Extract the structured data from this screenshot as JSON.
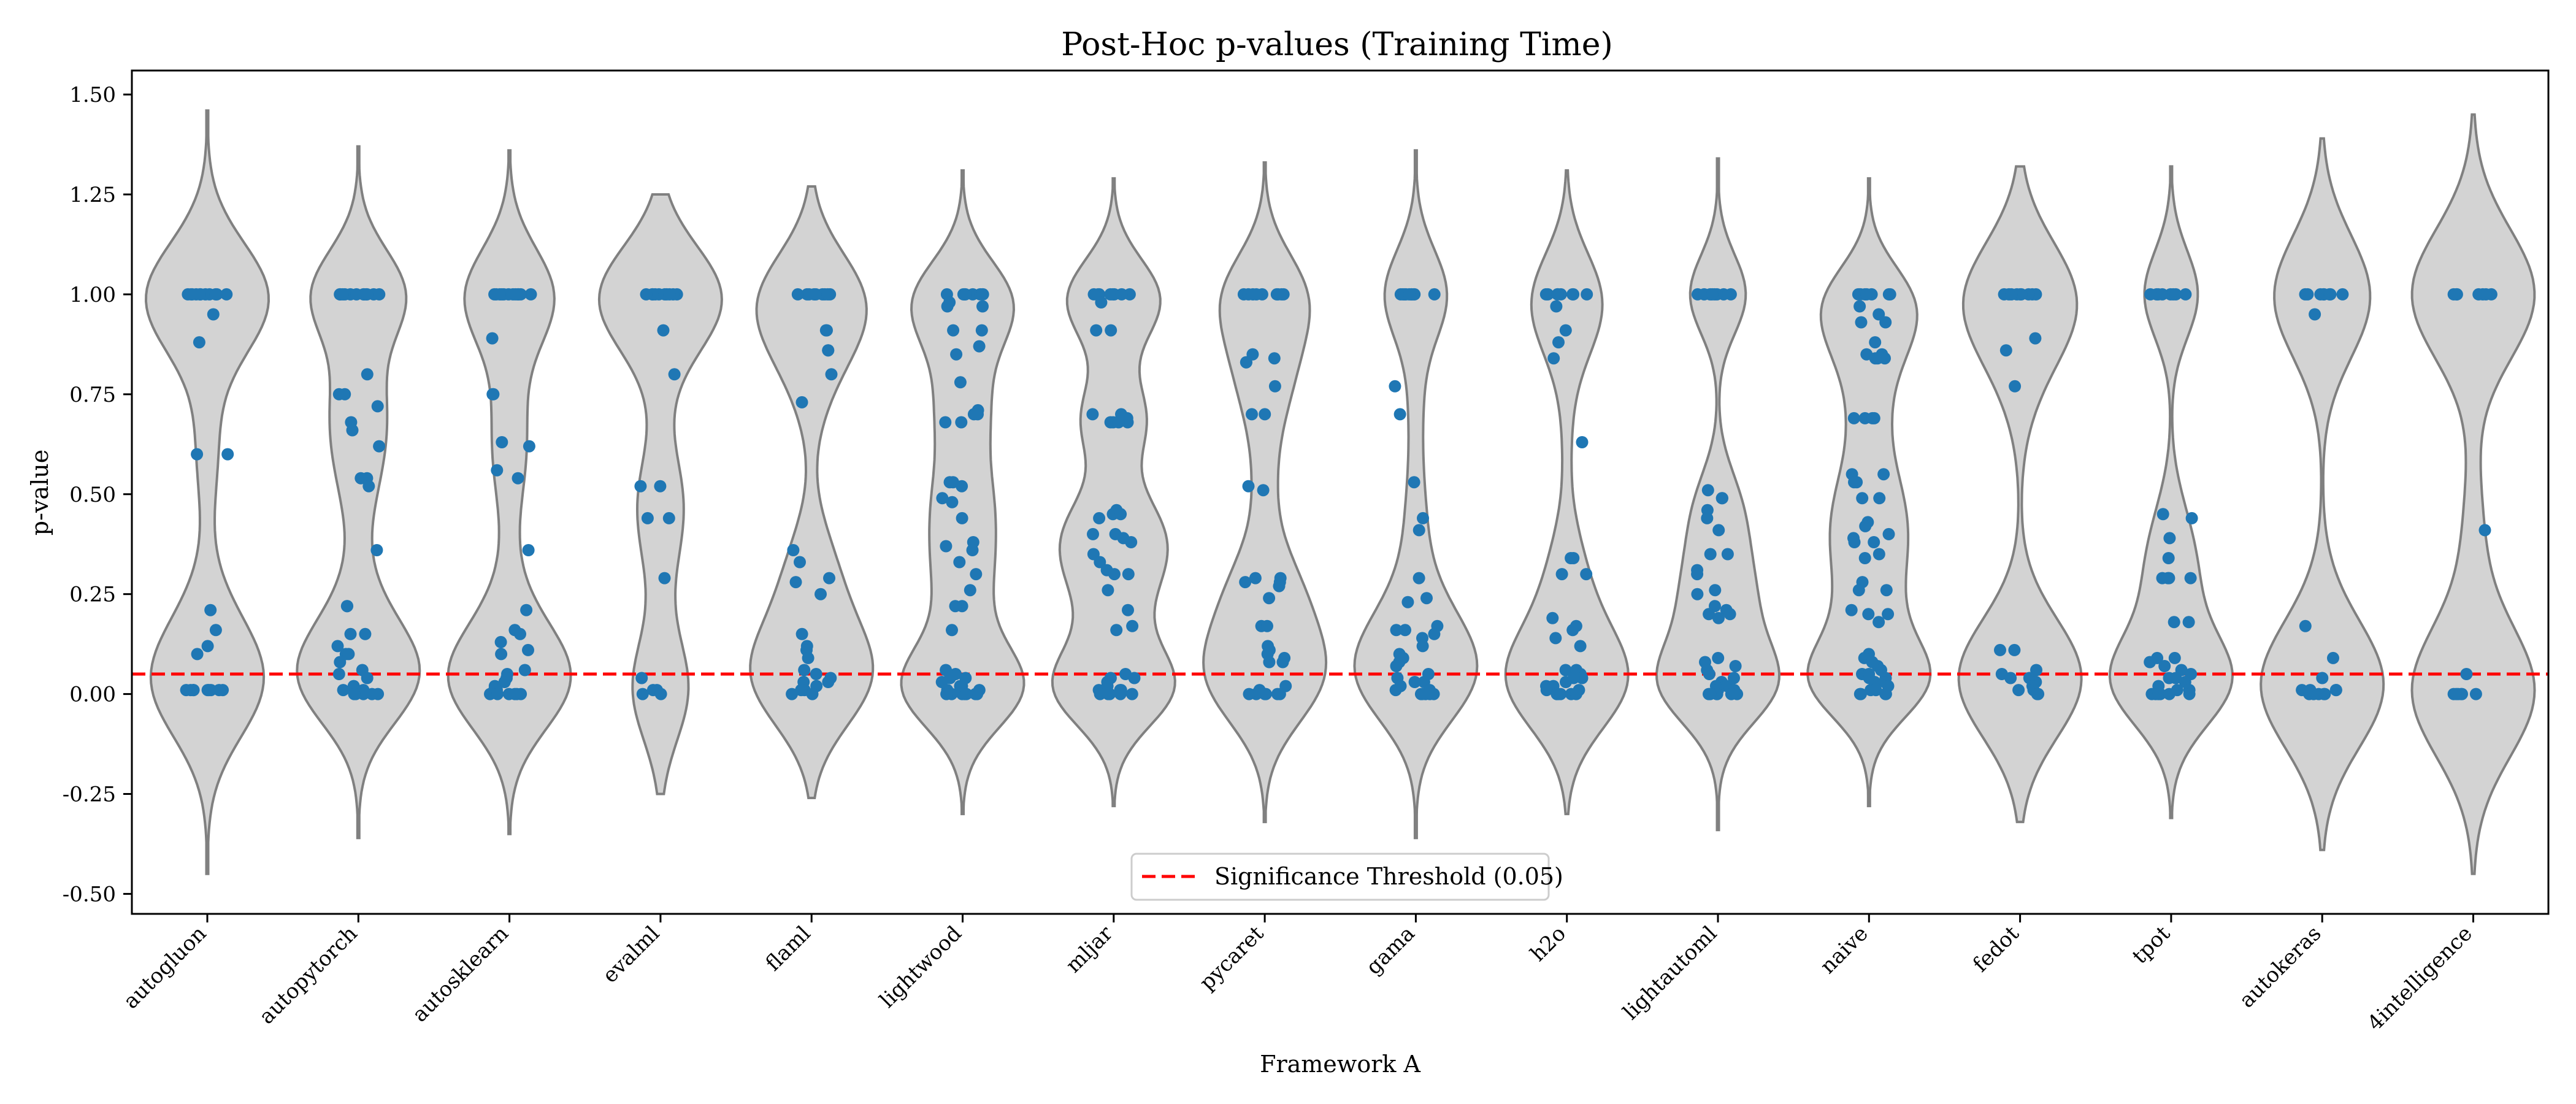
{
  "chart_data": {
    "type": "violin",
    "title": "Post-Hoc p-values (Training Time)",
    "xlabel": "Framework A",
    "ylabel": "p-value",
    "ylim": [
      -0.55,
      1.56
    ],
    "yticks": [
      -0.5,
      -0.25,
      0.0,
      0.25,
      0.5,
      0.75,
      1.0,
      1.25,
      1.5
    ],
    "ytick_labels": [
      "-0.50",
      "-0.25",
      "0.00",
      "0.25",
      "0.50",
      "0.75",
      "1.00",
      "1.25",
      "1.50"
    ],
    "categories": [
      "autogluon",
      "autopytorch",
      "autosklearn",
      "evalml",
      "flaml",
      "lightwood",
      "mljar",
      "pycaret",
      "gama",
      "h2o",
      "lightautoml",
      "naive",
      "fedot",
      "tpot",
      "autokeras",
      "4intelligence"
    ],
    "series": [
      {
        "values": [
          1,
          1,
          1,
          1,
          1,
          1,
          1,
          1,
          1,
          1,
          1,
          0.95,
          0.88,
          0.6,
          0.6,
          0.21,
          0.16,
          0.12,
          0.1,
          0.01,
          0.01,
          0.01,
          0.01,
          0.01,
          0.01,
          0.01,
          0.01,
          0.01
        ]
      },
      {
        "values": [
          1,
          1,
          1,
          1,
          1,
          1,
          1,
          1,
          1,
          1,
          1,
          1,
          0.8,
          0.75,
          0.75,
          0.72,
          0.68,
          0.66,
          0.62,
          0.54,
          0.54,
          0.52,
          0.36,
          0.22,
          0.22,
          0.15,
          0.15,
          0.12,
          0.1,
          0.1,
          0.08,
          0.06,
          0.05,
          0.04,
          0.02,
          0.01,
          0.01,
          0.0,
          0.0,
          0.0,
          0.0,
          0.0
        ]
      },
      {
        "values": [
          1,
          1,
          1,
          1,
          1,
          1,
          1,
          1,
          1,
          1,
          1,
          1,
          0.89,
          0.75,
          0.75,
          0.63,
          0.62,
          0.56,
          0.54,
          0.36,
          0.21,
          0.16,
          0.15,
          0.13,
          0.11,
          0.1,
          0.06,
          0.05,
          0.04,
          0.03,
          0.02,
          0.01,
          0.01,
          0.01,
          0.0,
          0.0,
          0.0,
          0.0,
          0.0,
          0.0
        ]
      },
      {
        "values": [
          1,
          1,
          1,
          1,
          1,
          1,
          1,
          1,
          1,
          1,
          0.91,
          0.8,
          0.52,
          0.52,
          0.44,
          0.44,
          0.29,
          0.04,
          0.01,
          0.01,
          0.0,
          0.0
        ]
      },
      {
        "values": [
          1,
          1,
          1,
          1,
          1,
          1,
          1,
          1,
          1,
          0.91,
          0.91,
          0.86,
          0.86,
          0.8,
          0.73,
          0.36,
          0.33,
          0.29,
          0.28,
          0.25,
          0.15,
          0.12,
          0.11,
          0.09,
          0.06,
          0.05,
          0.04,
          0.03,
          0.03,
          0.02,
          0.01,
          0.01,
          0.0,
          0.0
        ]
      },
      {
        "values": [
          1,
          1,
          1,
          1,
          1,
          1,
          1,
          1,
          0.98,
          0.97,
          0.97,
          0.91,
          0.91,
          0.87,
          0.85,
          0.78,
          0.71,
          0.7,
          0.7,
          0.68,
          0.68,
          0.53,
          0.53,
          0.52,
          0.49,
          0.48,
          0.44,
          0.38,
          0.37,
          0.36,
          0.33,
          0.3,
          0.26,
          0.22,
          0.22,
          0.16,
          0.06,
          0.05,
          0.04,
          0.04,
          0.03,
          0.02,
          0.02,
          0.01,
          0.01,
          0.0,
          0.0,
          0.0,
          0.0,
          0.0,
          0.0,
          0.0
        ]
      },
      {
        "values": [
          1,
          1,
          1,
          1,
          1,
          1,
          1,
          1,
          0.98,
          0.91,
          0.91,
          0.7,
          0.7,
          0.69,
          0.68,
          0.68,
          0.68,
          0.68,
          0.46,
          0.45,
          0.45,
          0.44,
          0.4,
          0.4,
          0.39,
          0.38,
          0.35,
          0.33,
          0.31,
          0.3,
          0.3,
          0.26,
          0.21,
          0.17,
          0.16,
          0.05,
          0.04,
          0.04,
          0.03,
          0.02,
          0.01,
          0.01,
          0.01,
          0.0,
          0.0,
          0.0,
          0.0,
          0.0
        ]
      },
      {
        "values": [
          1,
          1,
          1,
          1,
          1,
          1,
          1,
          1,
          1,
          0.85,
          0.84,
          0.83,
          0.83,
          0.77,
          0.7,
          0.7,
          0.52,
          0.51,
          0.29,
          0.29,
          0.28,
          0.28,
          0.27,
          0.24,
          0.17,
          0.17,
          0.12,
          0.11,
          0.1,
          0.09,
          0.08,
          0.08,
          0.02,
          0.01,
          0.0,
          0.0,
          0.0,
          0.0,
          0.0,
          0.0
        ]
      },
      {
        "values": [
          1,
          1,
          1,
          1,
          1,
          1,
          1,
          1,
          1,
          1,
          0.77,
          0.7,
          0.53,
          0.44,
          0.41,
          0.29,
          0.24,
          0.23,
          0.17,
          0.16,
          0.16,
          0.15,
          0.14,
          0.12,
          0.1,
          0.09,
          0.08,
          0.07,
          0.05,
          0.04,
          0.03,
          0.03,
          0.02,
          0.01,
          0.01,
          0.0,
          0.0,
          0.0,
          0.0,
          0.0
        ]
      },
      {
        "values": [
          1,
          1,
          1,
          1,
          1,
          1,
          1,
          1,
          0.97,
          0.91,
          0.88,
          0.84,
          0.63,
          0.34,
          0.34,
          0.3,
          0.3,
          0.19,
          0.17,
          0.16,
          0.14,
          0.12,
          0.06,
          0.06,
          0.05,
          0.04,
          0.04,
          0.03,
          0.02,
          0.02,
          0.01,
          0.01,
          0.0,
          0.0,
          0.0,
          0.0,
          0.0,
          0.0
        ]
      },
      {
        "values": [
          1,
          1,
          1,
          1,
          1,
          1,
          1,
          1,
          0.51,
          0.49,
          0.49,
          0.46,
          0.44,
          0.41,
          0.35,
          0.35,
          0.31,
          0.3,
          0.26,
          0.25,
          0.22,
          0.21,
          0.2,
          0.2,
          0.19,
          0.09,
          0.08,
          0.07,
          0.06,
          0.05,
          0.04,
          0.03,
          0.02,
          0.02,
          0.01,
          0.01,
          0.0,
          0.0,
          0.0,
          0.0,
          0.0,
          0.0
        ]
      },
      {
        "values": [
          1,
          1,
          1,
          1,
          1,
          1,
          1,
          1,
          0.97,
          0.95,
          0.93,
          0.93,
          0.88,
          0.85,
          0.85,
          0.84,
          0.84,
          0.84,
          0.69,
          0.69,
          0.69,
          0.69,
          0.55,
          0.55,
          0.53,
          0.53,
          0.49,
          0.49,
          0.43,
          0.42,
          0.4,
          0.39,
          0.38,
          0.38,
          0.35,
          0.34,
          0.28,
          0.26,
          0.26,
          0.21,
          0.2,
          0.2,
          0.18,
          0.1,
          0.09,
          0.08,
          0.07,
          0.06,
          0.05,
          0.05,
          0.04,
          0.04,
          0.03,
          0.03,
          0.02,
          0.01,
          0.01,
          0.0,
          0.0,
          0.0,
          0.0
        ]
      },
      {
        "values": [
          1,
          1,
          1,
          1,
          1,
          1,
          1,
          1,
          1,
          0.89,
          0.86,
          0.77,
          0.11,
          0.11,
          0.06,
          0.05,
          0.04,
          0.04,
          0.03,
          0.02,
          0.01,
          0.01,
          0.0,
          0.0
        ]
      },
      {
        "values": [
          1,
          1,
          1,
          1,
          1,
          1,
          1,
          1,
          0.45,
          0.44,
          0.39,
          0.34,
          0.29,
          0.29,
          0.29,
          0.29,
          0.18,
          0.18,
          0.09,
          0.09,
          0.08,
          0.07,
          0.06,
          0.05,
          0.04,
          0.04,
          0.03,
          0.02,
          0.01,
          0.01,
          0.0,
          0.0,
          0.0,
          0.0,
          0.0,
          0.0
        ]
      },
      {
        "values": [
          1,
          1,
          1,
          1,
          1,
          1,
          1,
          1,
          0.95,
          0.17,
          0.09,
          0.04,
          0.01,
          0.01,
          0.01,
          0.01,
          0.0,
          0.0,
          0.0,
          0.0,
          0.0
        ]
      },
      {
        "values": [
          1,
          1,
          1,
          1,
          1,
          1,
          1,
          0.41,
          0.05,
          0.0,
          0.0,
          0.0,
          0.0,
          0.0,
          0.0
        ]
      }
    ],
    "violin_extent": [
      [
        -0.45,
        1.46
      ],
      [
        -0.36,
        1.37
      ],
      [
        -0.35,
        1.36
      ],
      [
        -0.25,
        1.25
      ],
      [
        -0.26,
        1.27
      ],
      [
        -0.3,
        1.31
      ],
      [
        -0.28,
        1.29
      ],
      [
        -0.32,
        1.33
      ],
      [
        -0.36,
        1.36
      ],
      [
        -0.3,
        1.31
      ],
      [
        -0.34,
        1.34
      ],
      [
        -0.28,
        1.29
      ],
      [
        -0.32,
        1.32
      ],
      [
        -0.31,
        1.32
      ],
      [
        -0.39,
        1.39
      ],
      [
        -0.45,
        1.45
      ]
    ],
    "reference_line": {
      "y": 0.05,
      "label": "Significance Threshold (0.05)",
      "color": "#ff0000",
      "style": "dashed"
    },
    "legend": {
      "placement": "bottom-center",
      "entries": [
        "Significance Threshold (0.05)"
      ]
    },
    "colors": {
      "points": "#1f77b4",
      "violin_fill": "#d3d3d3",
      "violin_edge": "#808080",
      "threshold": "#ff0000"
    },
    "grid": false
  }
}
